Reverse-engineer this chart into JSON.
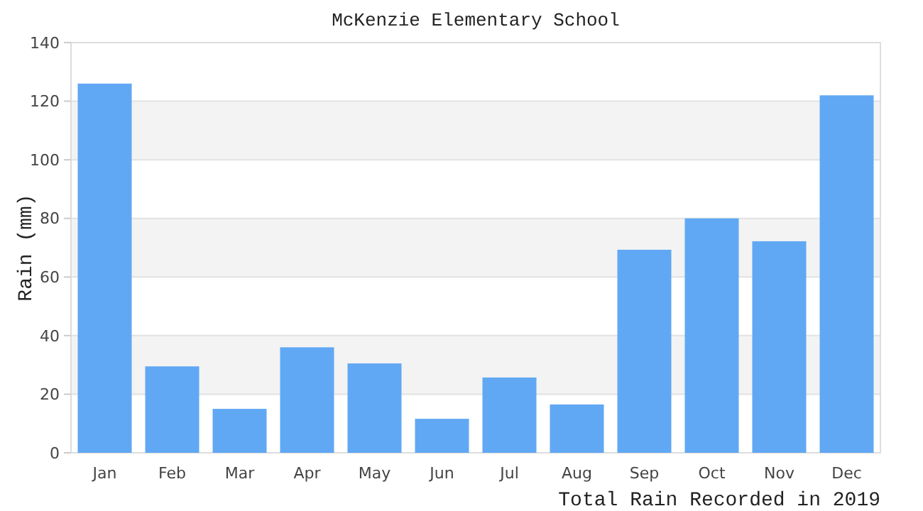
{
  "chart_data": {
    "type": "bar",
    "title": "McKenzie Elementary School",
    "ylabel": "Rain (mm)",
    "categories": [
      "Jan",
      "Feb",
      "Mar",
      "Apr",
      "May",
      "Jun",
      "Jul",
      "Aug",
      "Sep",
      "Oct",
      "Nov",
      "Dec"
    ],
    "values": [
      126,
      29.5,
      15,
      36,
      30.5,
      11.6,
      25.7,
      16.5,
      69.3,
      80,
      72.2,
      122
    ],
    "color": "#60a8f4",
    "ylim": [
      0,
      140
    ],
    "yticks": [
      0,
      20,
      40,
      60,
      80,
      100,
      120,
      140
    ],
    "grid": "y",
    "annotations": [
      "Total Rain Recorded in 2019"
    ]
  }
}
